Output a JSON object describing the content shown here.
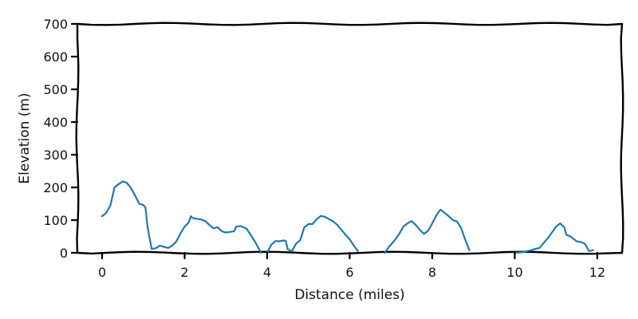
{
  "chart_data": {
    "type": "line",
    "title": "",
    "xlabel": "Distance (miles)",
    "ylabel": "Elevation (m)",
    "xlim": [
      -0.6,
      12.6
    ],
    "ylim": [
      0,
      700
    ],
    "xticks": [
      0,
      2,
      4,
      6,
      8,
      10,
      12
    ],
    "yticks": [
      0,
      100,
      200,
      300,
      400,
      500,
      600,
      700
    ],
    "grid": false,
    "style": "xkcd",
    "colors": {
      "series": "#1f77b4",
      "axis": "#000000"
    },
    "series": [
      {
        "values_note_only_structure": "",
        "segments": [
          [
            [
              0.0,
              112
            ],
            [
              0.1,
              122
            ],
            [
              0.2,
              145
            ],
            [
              0.3,
              200
            ],
            [
              0.4,
              210
            ],
            [
              0.5,
              218
            ],
            [
              0.6,
              214
            ],
            [
              0.7,
              198
            ],
            [
              0.8,
              175
            ],
            [
              0.9,
              150
            ],
            [
              1.0,
              146
            ],
            [
              1.05,
              138
            ],
            [
              1.1,
              80
            ],
            [
              1.2,
              12
            ],
            [
              1.3,
              14
            ],
            [
              1.4,
              22
            ],
            [
              1.5,
              18
            ],
            [
              1.6,
              15
            ],
            [
              1.7,
              22
            ],
            [
              1.8,
              35
            ],
            [
              1.9,
              60
            ],
            [
              2.0,
              80
            ],
            [
              2.1,
              93
            ],
            [
              2.15,
              112
            ],
            [
              2.2,
              106
            ],
            [
              2.4,
              102
            ],
            [
              2.5,
              97
            ],
            [
              2.6,
              85
            ],
            [
              2.7,
              75
            ],
            [
              2.8,
              78
            ],
            [
              2.9,
              66
            ],
            [
              3.0,
              62
            ],
            [
              3.1,
              64
            ],
            [
              3.2,
              66
            ],
            [
              3.25,
              80
            ],
            [
              3.35,
              82
            ],
            [
              3.5,
              74
            ],
            [
              3.6,
              55
            ],
            [
              3.7,
              35
            ],
            [
              3.8,
              12
            ],
            [
              3.85,
              0
            ]
          ],
          [
            [
              4.0,
              0
            ],
            [
              4.1,
              25
            ],
            [
              4.2,
              36
            ],
            [
              4.3,
              35
            ],
            [
              4.4,
              38
            ],
            [
              4.45,
              36
            ],
            [
              4.5,
              10
            ],
            [
              4.6,
              5
            ],
            [
              4.7,
              28
            ],
            [
              4.8,
              38
            ],
            [
              4.9,
              78
            ],
            [
              5.0,
              88
            ],
            [
              5.1,
              88
            ],
            [
              5.2,
              103
            ],
            [
              5.3,
              113
            ],
            [
              5.4,
              110
            ],
            [
              5.5,
              103
            ],
            [
              5.6,
              96
            ],
            [
              5.7,
              85
            ],
            [
              5.8,
              70
            ],
            [
              5.9,
              55
            ],
            [
              6.0,
              41
            ],
            [
              6.1,
              22
            ],
            [
              6.2,
              5
            ]
          ],
          [
            [
              6.85,
              0
            ],
            [
              6.95,
              18
            ],
            [
              7.1,
              40
            ],
            [
              7.2,
              58
            ],
            [
              7.3,
              80
            ],
            [
              7.4,
              90
            ],
            [
              7.5,
              97
            ],
            [
              7.6,
              85
            ],
            [
              7.7,
              70
            ],
            [
              7.8,
              58
            ],
            [
              7.9,
              67
            ],
            [
              8.0,
              90
            ],
            [
              8.1,
              115
            ],
            [
              8.2,
              132
            ],
            [
              8.3,
              122
            ],
            [
              8.4,
              112
            ],
            [
              8.5,
              100
            ],
            [
              8.6,
              96
            ],
            [
              8.7,
              76
            ],
            [
              8.8,
              40
            ],
            [
              8.9,
              8
            ]
          ],
          [
            [
              10.0,
              0
            ],
            [
              10.2,
              2
            ],
            [
              10.3,
              5
            ],
            [
              10.4,
              8
            ],
            [
              10.5,
              12
            ],
            [
              10.6,
              15
            ],
            [
              10.7,
              30
            ],
            [
              10.8,
              45
            ],
            [
              10.9,
              62
            ],
            [
              11.0,
              80
            ],
            [
              11.1,
              90
            ],
            [
              11.2,
              78
            ],
            [
              11.25,
              55
            ],
            [
              11.35,
              50
            ],
            [
              11.5,
              35
            ],
            [
              11.6,
              33
            ],
            [
              11.7,
              28
            ],
            [
              11.8,
              5
            ],
            [
              11.9,
              8
            ]
          ]
        ]
      }
    ]
  }
}
